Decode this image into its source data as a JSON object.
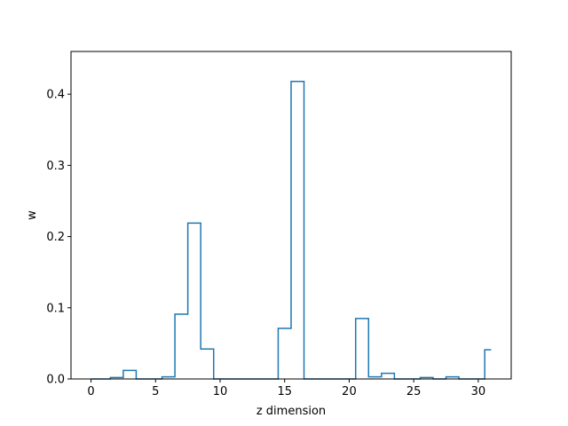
{
  "chart_data": {
    "type": "step",
    "title": "",
    "xlabel": "z dimension",
    "ylabel": "w",
    "xlim": [
      -1.55,
      32.55
    ],
    "ylim": [
      0,
      0.46
    ],
    "xticks": [
      0,
      5,
      10,
      15,
      20,
      25,
      30
    ],
    "yticks": [
      0.0,
      0.1,
      0.2,
      0.3,
      0.4
    ],
    "ytick_labels": [
      "0.0",
      "0.1",
      "0.2",
      "0.3",
      "0.4"
    ],
    "grid": false,
    "legend": "none",
    "color": "#1f77b4",
    "x": [
      0,
      1,
      2,
      3,
      4,
      5,
      6,
      7,
      8,
      9,
      10,
      11,
      12,
      13,
      14,
      15,
      16,
      17,
      18,
      19,
      20,
      21,
      22,
      23,
      24,
      25,
      26,
      27,
      28,
      29,
      30,
      31
    ],
    "values": [
      0.0,
      0.0,
      0.002,
      0.012,
      0.0,
      0.0,
      0.003,
      0.091,
      0.219,
      0.042,
      0.0,
      0.0,
      0.0,
      0.0,
      0.0,
      0.071,
      0.418,
      0.0,
      0.0,
      0.0,
      0.0,
      0.085,
      0.003,
      0.008,
      0.0,
      0.0,
      0.002,
      0.0,
      0.003,
      0.0,
      0.0,
      0.041
    ]
  }
}
